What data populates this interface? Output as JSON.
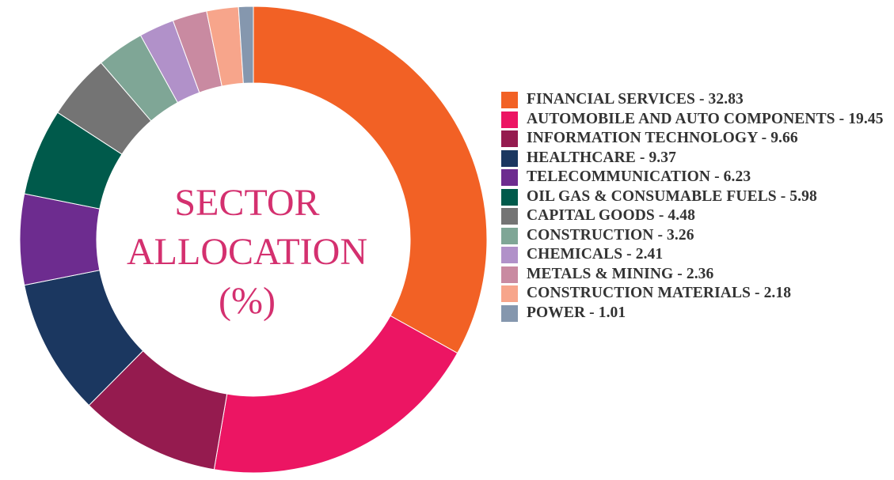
{
  "chart_data": {
    "type": "pie",
    "variant": "donut",
    "center_title_lines": [
      "SECTOR",
      "ALLOCATION",
      "(%)"
    ],
    "start_angle_deg": 0,
    "direction": "clockwise",
    "legend_position": "right",
    "slices": [
      {
        "label": "FINANCIAL SERVICES",
        "value": 32.83,
        "value_text": "32.83",
        "color": "#f26125"
      },
      {
        "label": "AUTOMOBILE AND AUTO COMPONENTS",
        "value": 19.45,
        "value_text": "19.45",
        "color": "#ec1563"
      },
      {
        "label": "INFORMATION TECHNOLOGY",
        "value": 9.66,
        "value_text": "9.66",
        "color": "#951b4f"
      },
      {
        "label": "HEALTHCARE",
        "value": 9.37,
        "value_text": "9.37",
        "color": "#1b3760"
      },
      {
        "label": "TELECOMMUNICATION",
        "value": 6.23,
        "value_text": "6.23",
        "color": "#6d2c8f"
      },
      {
        "label": "OIL GAS & CONSUMABLE FUELS",
        "value": 5.98,
        "value_text": "5.98",
        "color": "#005a4b"
      },
      {
        "label": "CAPITAL GOODS",
        "value": 4.48,
        "value_text": "4.48",
        "color": "#747474"
      },
      {
        "label": "CONSTRUCTION",
        "value": 3.26,
        "value_text": "3.26",
        "color": "#7fa696"
      },
      {
        "label": "CHEMICALS",
        "value": 2.41,
        "value_text": "2.41",
        "color": "#b191c9"
      },
      {
        "label": "METALS & MINING",
        "value": 2.36,
        "value_text": "2.36",
        "color": "#c98aa1"
      },
      {
        "label": "CONSTRUCTION MATERIALS",
        "value": 2.18,
        "value_text": "2.18",
        "color": "#f7a58b"
      },
      {
        "label": "POWER",
        "value": 1.01,
        "value_text": "1.01",
        "color": "#8597ae"
      }
    ]
  }
}
